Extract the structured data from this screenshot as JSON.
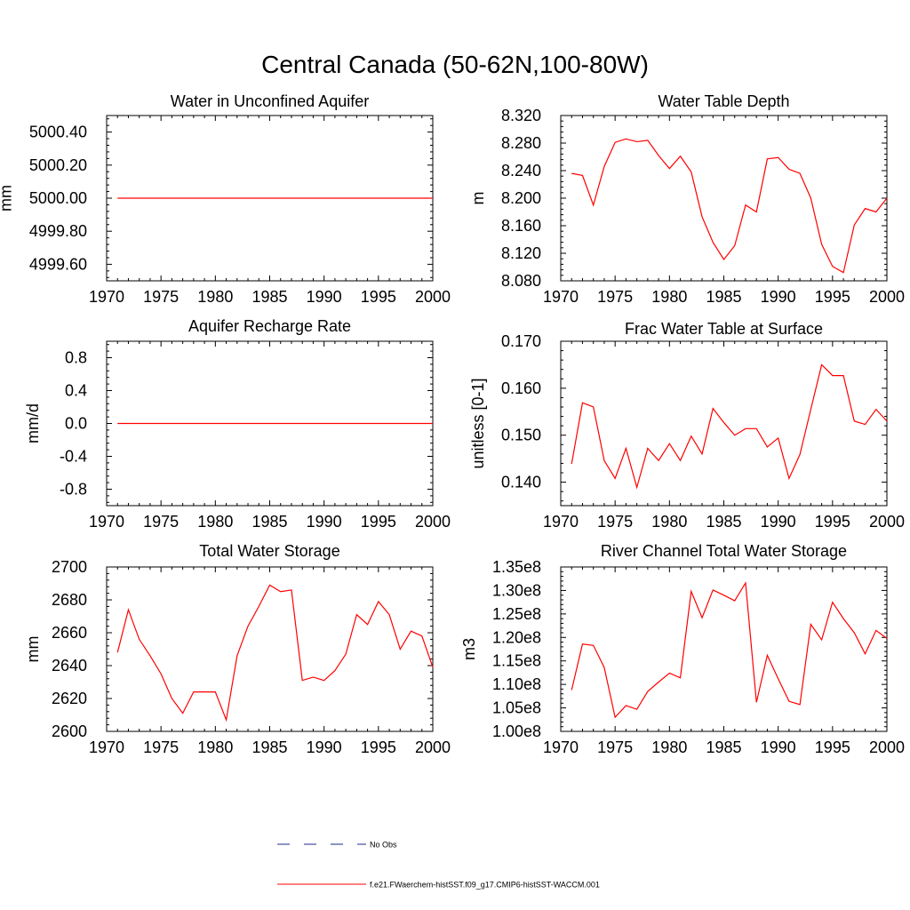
{
  "figure_title": "Central Canada (50-62N,100-80W)",
  "colors": {
    "model": "#ff0000",
    "obs": "#1f2a8a",
    "axis": "#000000"
  },
  "legend": [
    {
      "label": "No Obs",
      "style": "dashed",
      "color": "#1f2a8a"
    },
    {
      "label": "f.e21.FWaerchem-histSST.f09_g17.CMIP6-histSST-WACCM.001",
      "style": "solid",
      "color": "#ff0000"
    }
  ],
  "chart_data": [
    {
      "type": "line",
      "title": "Water in Unconfined Aquifer",
      "ylabel": "mm",
      "xlim": [
        1970,
        2000
      ],
      "ylim": [
        4999.5,
        5000.5
      ],
      "yticks": [
        4999.6,
        4999.8,
        5000.0,
        5000.2,
        5000.4
      ],
      "ytick_labels": [
        "4999.60",
        "4999.80",
        "5000.00",
        "5000.20",
        "5000.40"
      ],
      "xticks": [
        1970,
        1975,
        1980,
        1985,
        1990,
        1995,
        2000
      ],
      "x": [
        1971,
        1972,
        1973,
        1974,
        1975,
        1976,
        1977,
        1978,
        1979,
        1980,
        1981,
        1982,
        1983,
        1984,
        1985,
        1986,
        1987,
        1988,
        1989,
        1990,
        1991,
        1992,
        1993,
        1994,
        1995,
        1996,
        1997,
        1998,
        1999,
        2000
      ],
      "series": [
        {
          "values": [
            5000,
            5000,
            5000,
            5000,
            5000,
            5000,
            5000,
            5000,
            5000,
            5000,
            5000,
            5000,
            5000,
            5000,
            5000,
            5000,
            5000,
            5000,
            5000,
            5000,
            5000,
            5000,
            5000,
            5000,
            5000,
            5000,
            5000,
            5000,
            5000,
            5000
          ]
        }
      ]
    },
    {
      "type": "line",
      "title": "Water Table Depth",
      "ylabel": "m",
      "xlim": [
        1970,
        2000
      ],
      "ylim": [
        8.08,
        8.32
      ],
      "yticks": [
        8.08,
        8.12,
        8.16,
        8.2,
        8.24,
        8.28,
        8.32
      ],
      "ytick_labels": [
        "8.080",
        "8.120",
        "8.160",
        "8.200",
        "8.240",
        "8.280",
        "8.320"
      ],
      "xticks": [
        1970,
        1975,
        1980,
        1985,
        1990,
        1995,
        2000
      ],
      "x": [
        1971,
        1972,
        1973,
        1974,
        1975,
        1976,
        1977,
        1978,
        1979,
        1980,
        1981,
        1982,
        1983,
        1984,
        1985,
        1986,
        1987,
        1988,
        1989,
        1990,
        1991,
        1992,
        1993,
        1994,
        1995,
        1996,
        1997,
        1998,
        1999,
        2000
      ],
      "series": [
        {
          "values": [
            8.236,
            8.233,
            8.19,
            8.246,
            8.281,
            8.286,
            8.282,
            8.284,
            8.262,
            8.243,
            8.261,
            8.238,
            8.173,
            8.136,
            8.111,
            8.131,
            8.19,
            8.18,
            8.257,
            8.259,
            8.242,
            8.236,
            8.2,
            8.133,
            8.101,
            8.092,
            8.161,
            8.185,
            8.18,
            8.2
          ]
        }
      ]
    },
    {
      "type": "line",
      "title": "Aquifer Recharge Rate",
      "ylabel": "mm/d",
      "xlim": [
        1970,
        2000
      ],
      "ylim": [
        -1.0,
        1.0
      ],
      "yticks": [
        -0.8,
        -0.4,
        0.0,
        0.4,
        0.8
      ],
      "ytick_labels": [
        "-0.8",
        "-0.4",
        "0.0",
        "0.4",
        "0.8"
      ],
      "xticks": [
        1970,
        1975,
        1980,
        1985,
        1990,
        1995,
        2000
      ],
      "x": [
        1971,
        1972,
        1973,
        1974,
        1975,
        1976,
        1977,
        1978,
        1979,
        1980,
        1981,
        1982,
        1983,
        1984,
        1985,
        1986,
        1987,
        1988,
        1989,
        1990,
        1991,
        1992,
        1993,
        1994,
        1995,
        1996,
        1997,
        1998,
        1999,
        2000
      ],
      "series": [
        {
          "values": [
            0,
            0,
            0,
            0,
            0,
            0,
            0,
            0,
            0,
            0,
            0,
            0,
            0,
            0,
            0,
            0,
            0,
            0,
            0,
            0,
            0,
            0,
            0,
            0,
            0,
            0,
            0,
            0,
            0,
            0
          ]
        }
      ]
    },
    {
      "type": "line",
      "title": "Frac Water Table at Surface",
      "ylabel": "unitless [0-1]",
      "xlim": [
        1970,
        2000
      ],
      "ylim": [
        0.135,
        0.17
      ],
      "yticks": [
        0.14,
        0.15,
        0.16,
        0.17
      ],
      "ytick_labels": [
        "0.140",
        "0.150",
        "0.160",
        "0.170"
      ],
      "xticks": [
        1970,
        1975,
        1980,
        1985,
        1990,
        1995,
        2000
      ],
      "x": [
        1971,
        1972,
        1973,
        1974,
        1975,
        1976,
        1977,
        1978,
        1979,
        1980,
        1981,
        1982,
        1983,
        1984,
        1985,
        1986,
        1987,
        1988,
        1989,
        1990,
        1991,
        1992,
        1993,
        1994,
        1995,
        1996,
        1997,
        1998,
        1999,
        2000
      ],
      "series": [
        {
          "values": [
            0.1439,
            0.1569,
            0.156,
            0.1446,
            0.1408,
            0.1472,
            0.1389,
            0.1472,
            0.1446,
            0.1482,
            0.1446,
            0.1498,
            0.146,
            0.1557,
            0.1527,
            0.15,
            0.1514,
            0.1514,
            0.1475,
            0.1494,
            0.1408,
            0.1459,
            0.1555,
            0.165,
            0.1627,
            0.1627,
            0.153,
            0.1523,
            0.1555,
            0.153
          ]
        }
      ]
    },
    {
      "type": "line",
      "title": "Total Water Storage",
      "ylabel": "mm",
      "xlim": [
        1970,
        2000
      ],
      "ylim": [
        2600,
        2700
      ],
      "yticks": [
        2600,
        2620,
        2640,
        2660,
        2680,
        2700
      ],
      "ytick_labels": [
        "2600",
        "2620",
        "2640",
        "2660",
        "2680",
        "2700"
      ],
      "xticks": [
        1970,
        1975,
        1980,
        1985,
        1990,
        1995,
        2000
      ],
      "x": [
        1971,
        1972,
        1973,
        1974,
        1975,
        1976,
        1977,
        1978,
        1979,
        1980,
        1981,
        1982,
        1983,
        1984,
        1985,
        1986,
        1987,
        1988,
        1989,
        1990,
        1991,
        1992,
        1993,
        1994,
        1995,
        1996,
        1997,
        1998,
        1999,
        2000
      ],
      "series": [
        {
          "values": [
            2648,
            2674,
            2656,
            2646,
            2635,
            2620,
            2611,
            2624,
            2624,
            2624,
            2607,
            2646,
            2664,
            2676,
            2689,
            2685,
            2686,
            2631,
            2633,
            2631,
            2637,
            2647,
            2671,
            2665,
            2679,
            2671,
            2650,
            2661,
            2658,
            2639
          ]
        }
      ]
    },
    {
      "type": "line",
      "title": "River Channel Total Water Storage",
      "ylabel": "m3",
      "xlim": [
        1970,
        2000
      ],
      "ylim": [
        100000000.0,
        135000000.0
      ],
      "yticks": [
        100000000.0,
        105000000.0,
        110000000.0,
        115000000.0,
        120000000.0,
        125000000.0,
        130000000.0,
        135000000.0
      ],
      "ytick_labels": [
        "1.00e8",
        "1.05e8",
        "1.10e8",
        "1.15e8",
        "1.20e8",
        "1.25e8",
        "1.30e8",
        "1.35e8"
      ],
      "xticks": [
        1970,
        1975,
        1980,
        1985,
        1990,
        1995,
        2000
      ],
      "x": [
        1971,
        1972,
        1973,
        1974,
        1975,
        1976,
        1977,
        1978,
        1979,
        1980,
        1981,
        1982,
        1983,
        1984,
        1985,
        1986,
        1987,
        1988,
        1989,
        1990,
        1991,
        1992,
        1993,
        1994,
        1995,
        1996,
        1997,
        1998,
        1999,
        2000
      ],
      "series": [
        {
          "values": [
            108800000.0,
            118600000.0,
            118300000.0,
            113600000.0,
            103000000.0,
            105500000.0,
            104700000.0,
            108500000.0,
            110500000.0,
            112400000.0,
            111400000.0,
            129800000.0,
            124200000.0,
            130100000.0,
            129000000.0,
            127800000.0,
            131600000.0,
            106200000.0,
            116200000.0,
            111200000.0,
            106400000.0,
            105700000.0,
            122800000.0,
            119500000.0,
            127500000.0,
            124000000.0,
            121000000.0,
            116500000.0,
            121500000.0,
            119800000.0
          ]
        }
      ]
    }
  ]
}
